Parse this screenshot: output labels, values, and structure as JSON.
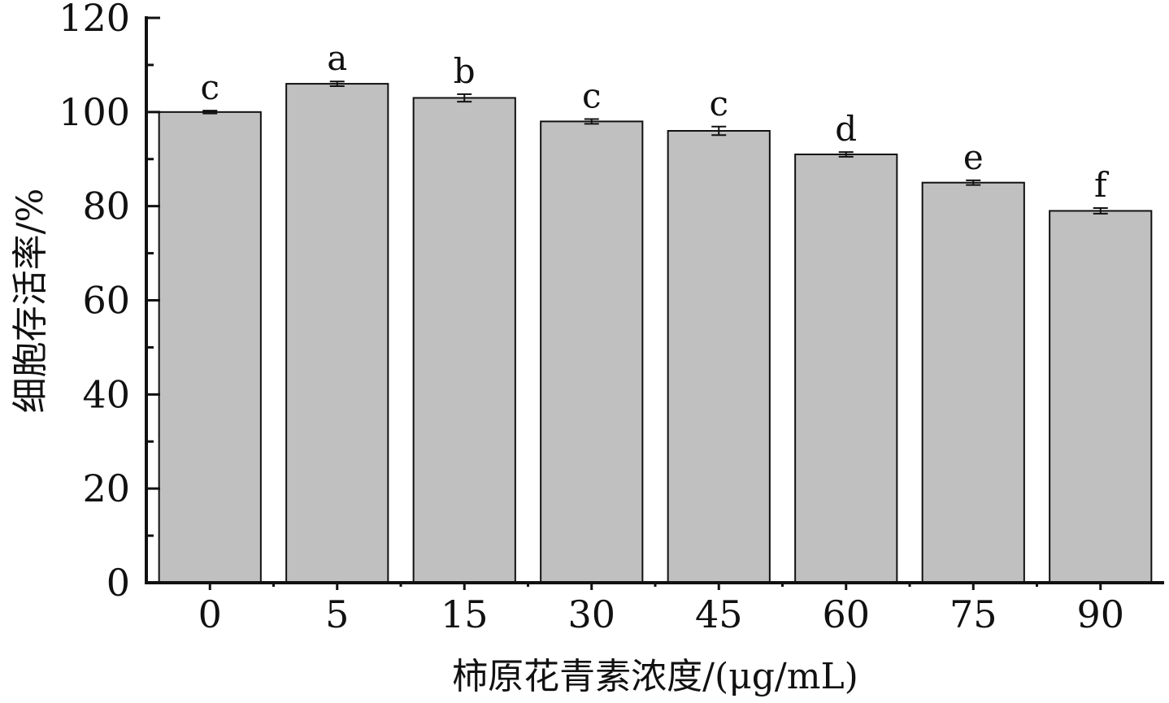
{
  "chart_data": {
    "type": "bar",
    "xlabel": "柿原花青素浓度/(μg/mL)",
    "ylabel": "细胞存活率/%",
    "categories": [
      "0",
      "5",
      "15",
      "30",
      "45",
      "60",
      "75",
      "90"
    ],
    "values": [
      100,
      106,
      103,
      98,
      96,
      91,
      85,
      79
    ],
    "errors": [
      0.3,
      0.5,
      0.8,
      0.5,
      0.9,
      0.5,
      0.5,
      0.6
    ],
    "significance": [
      "c",
      "a",
      "b",
      "c",
      "c",
      "d",
      "e",
      "f"
    ],
    "ylim": [
      0,
      120
    ],
    "yticks": [
      "0",
      "20",
      "40",
      "60",
      "80",
      "100",
      "120"
    ],
    "grid": false,
    "bar_color": "#c0c0c0",
    "edge_color": "#111111"
  }
}
